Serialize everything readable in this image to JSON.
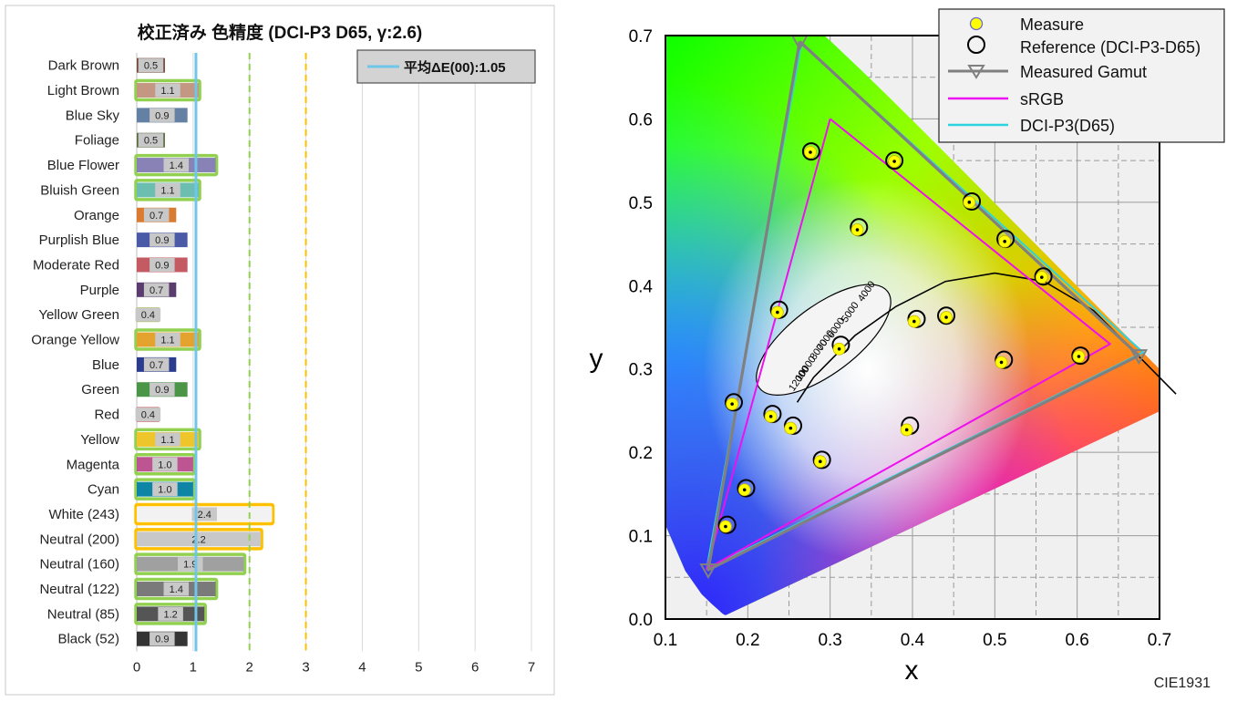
{
  "chart_data": [
    {
      "type": "bar",
      "title": "校正済み 色精度 (DCI-P3 D65, γ:2.6)",
      "legend": {
        "label": "平均ΔE(00):1.05",
        "color": "#6ec6ea",
        "placement": "top-right"
      },
      "average": 1.05,
      "xlim": [
        0,
        7
      ],
      "xticks": [
        "0",
        "1",
        "2",
        "3",
        "4",
        "5",
        "6",
        "7"
      ],
      "reference_lines": [
        {
          "value": 1.05,
          "color": "#6ec6ea",
          "style": "solid"
        },
        {
          "value": 2,
          "color": "#92d050",
          "style": "dashed"
        },
        {
          "value": 3,
          "color": "#ffc000",
          "style": "dashed"
        }
      ],
      "grid": true,
      "categories": [
        "Dark Brown",
        "Light Brown",
        "Blue Sky",
        "Foliage",
        "Blue Flower",
        "Bluish Green",
        "Orange",
        "Purplish Blue",
        "Moderate Red",
        "Purple",
        "Yellow Green",
        "Orange Yellow",
        "Blue",
        "Green",
        "Red",
        "Yellow",
        "Magenta",
        "Cyan",
        "White (243)",
        "Neutral (200)",
        "Neutral (160)",
        "Neutral (122)",
        "Neutral (85)",
        "Black (52)"
      ],
      "values": [
        0.5,
        1.1,
        0.9,
        0.5,
        1.4,
        1.1,
        0.7,
        0.9,
        0.9,
        0.7,
        0.4,
        1.1,
        0.7,
        0.9,
        0.4,
        1.1,
        1.0,
        1.0,
        2.4,
        2.2,
        1.9,
        1.4,
        1.2,
        0.9
      ],
      "value_labels": [
        "0.5",
        "1.1",
        "0.9",
        "0.5",
        "1.4",
        "1.1",
        "0.7",
        "0.9",
        "0.9",
        "0.7",
        "0.4",
        "1.1",
        "0.7",
        "0.9",
        "0.4",
        "1.1",
        "1.0",
        "1.0",
        "2.4",
        "2.2",
        "1.9",
        "1.4",
        "1.2",
        "0.9"
      ],
      "patch_colors": [
        "#74483a",
        "#c49783",
        "#6481a3",
        "#596e40",
        "#8882b6",
        "#6cbfb0",
        "#d97c32",
        "#4a5aa6",
        "#c45a62",
        "#5a3d6e",
        "#a4bb3f",
        "#e4a32f",
        "#2b3c8f",
        "#4a9548",
        "#b23a39",
        "#eec52a",
        "#bd5593",
        "#0f85a6",
        "#f2f2f2",
        "#c8c8c8",
        "#a0a0a0",
        "#7a7a7a",
        "#555555",
        "#343434"
      ],
      "outline_colors": {
        "ok": "#92d050",
        "warn": "#ffc000"
      }
    },
    {
      "type": "scatter",
      "title": "CIE1931",
      "xlabel": "x",
      "ylabel": "y",
      "xlim": [
        0.1,
        0.7
      ],
      "ylim": [
        0.0,
        0.7
      ],
      "xticks": [
        "0.1",
        "0.2",
        "0.3",
        "0.4",
        "0.5",
        "0.6",
        "0.7"
      ],
      "yticks": [
        "0.0",
        "0.1",
        "0.2",
        "0.3",
        "0.4",
        "0.5",
        "0.6",
        "0.7"
      ],
      "grid": true,
      "legend_placement": "top-right",
      "legend": [
        "Measure",
        "Reference (DCI-P3-D65)",
        "Measured Gamut",
        "sRGB",
        "DCI-P3(D65)"
      ],
      "series": [
        {
          "name": "Measure",
          "points": [
            [
              0.173,
              0.111
            ],
            [
              0.196,
              0.155
            ],
            [
              0.181,
              0.258
            ],
            [
              0.228,
              0.243
            ],
            [
              0.252,
              0.229
            ],
            [
              0.288,
              0.189
            ],
            [
              0.236,
              0.368
            ],
            [
              0.276,
              0.56
            ],
            [
              0.311,
              0.324
            ],
            [
              0.333,
              0.467
            ],
            [
              0.378,
              0.549
            ],
            [
              0.393,
              0.227
            ],
            [
              0.402,
              0.357
            ],
            [
              0.441,
              0.362
            ],
            [
              0.469,
              0.5
            ],
            [
              0.508,
              0.308
            ],
            [
              0.512,
              0.453
            ],
            [
              0.557,
              0.41
            ],
            [
              0.602,
              0.315
            ]
          ]
        },
        {
          "name": "Reference (DCI-P3-D65)",
          "points": [
            [
              0.175,
              0.113
            ],
            [
              0.198,
              0.157
            ],
            [
              0.183,
              0.26
            ],
            [
              0.23,
              0.246
            ],
            [
              0.255,
              0.232
            ],
            [
              0.29,
              0.191
            ],
            [
              0.238,
              0.371
            ],
            [
              0.277,
              0.561
            ],
            [
              0.313,
              0.329
            ],
            [
              0.335,
              0.47
            ],
            [
              0.378,
              0.55
            ],
            [
              0.397,
              0.232
            ],
            [
              0.405,
              0.36
            ],
            [
              0.441,
              0.364
            ],
            [
              0.472,
              0.501
            ],
            [
              0.511,
              0.311
            ],
            [
              0.513,
              0.456
            ],
            [
              0.559,
              0.411
            ],
            [
              0.604,
              0.316
            ]
          ]
        },
        {
          "name": "Measured Gamut",
          "color": "#808080",
          "points": [
            [
              0.263,
              0.693
            ],
            [
              0.675,
              0.316
            ],
            [
              0.152,
              0.059
            ],
            [
              0.263,
              0.693
            ]
          ]
        },
        {
          "name": "sRGB",
          "color": "#ee10ee",
          "points": [
            [
              0.3,
              0.6
            ],
            [
              0.64,
              0.33
            ],
            [
              0.15,
              0.06
            ],
            [
              0.3,
              0.6
            ]
          ]
        },
        {
          "name": "DCI-P3(D65)",
          "color": "#2dd3e0",
          "points": [
            [
              0.265,
              0.69
            ],
            [
              0.68,
              0.32
            ],
            [
              0.15,
              0.06
            ],
            [
              0.265,
              0.69
            ]
          ]
        }
      ],
      "cct_labels": [
        "4000",
        "5000",
        "6000",
        "7000",
        "8000",
        "10000",
        "12000"
      ]
    }
  ]
}
